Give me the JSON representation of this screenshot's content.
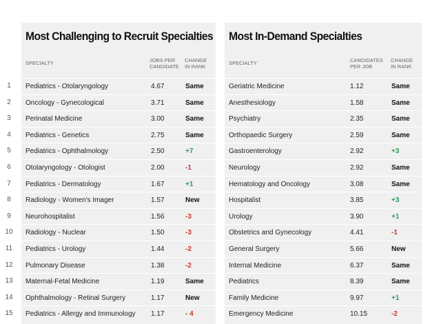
{
  "left": {
    "title": "Most Challenging to Recruit Specialties",
    "headers": {
      "specialty": "SPECIALTY",
      "metric": "JOBS PER\nCANDIDATE",
      "change": "CHANGE\nIN RANK"
    },
    "rows": [
      {
        "n": "1",
        "name": "Pediatrics - Otolaryngology",
        "v": "4.67",
        "c": "Same",
        "t": "same"
      },
      {
        "n": "2",
        "name": "Oncology - Gynecological",
        "v": "3.71",
        "c": "Same",
        "t": "same"
      },
      {
        "n": "3",
        "name": "Perinatal Medicine",
        "v": "3.00",
        "c": "Same",
        "t": "same"
      },
      {
        "n": "4",
        "name": "Pediatrics - Genetics",
        "v": "2.75",
        "c": "Same",
        "t": "same"
      },
      {
        "n": "5",
        "name": "Pediatrics - Ophthalmology",
        "v": "2.50",
        "c": "+7",
        "t": "up"
      },
      {
        "n": "6",
        "name": "Otolaryngology - Otologist",
        "v": "2.00",
        "c": "-1",
        "t": "down"
      },
      {
        "n": "7",
        "name": "Pediatrics - Dermatology",
        "v": "1.67",
        "c": "+1",
        "t": "up"
      },
      {
        "n": "8",
        "name": "Radiology - Women's Imager",
        "v": "1.57",
        "c": "New",
        "t": "new"
      },
      {
        "n": "9",
        "name": "Neurohospitalist",
        "v": "1.56",
        "c": "-3",
        "t": "down"
      },
      {
        "n": "10",
        "name": "Radiology - Nuclear",
        "v": "1.50",
        "c": "-3",
        "t": "down"
      },
      {
        "n": "11",
        "name": "Pediatrics - Urology",
        "v": "1.44",
        "c": "-2",
        "t": "down"
      },
      {
        "n": "12",
        "name": "Pulmonary Disease",
        "v": "1.38",
        "c": "-2",
        "t": "down"
      },
      {
        "n": "13",
        "name": "Maternal-Fetal Medicine",
        "v": "1.19",
        "c": "Same",
        "t": "same"
      },
      {
        "n": "14",
        "name": "Ophthalmology - Retinal Surgery",
        "v": "1.17",
        "c": "New",
        "t": "new"
      },
      {
        "n": "15",
        "name": "Pediatrics - Allergy and Immunology",
        "v": "1.17",
        "c": "- 4",
        "t": "down"
      }
    ]
  },
  "right": {
    "title": "Most In-Demand Specialties",
    "headers": {
      "specialty": "SPECIALTY",
      "metric": "CANDIDATES\nPER JOB",
      "change": "CHANGE\nIN RANK"
    },
    "rows": [
      {
        "name": "Geriatric Medicine",
        "v": "1.12",
        "c": "Same",
        "t": "same"
      },
      {
        "name": "Anesthesiology",
        "v": "1.58",
        "c": "Same",
        "t": "same"
      },
      {
        "name": "Psychiatry",
        "v": "2.35",
        "c": "Same",
        "t": "same"
      },
      {
        "name": "Orthopaedic Surgery",
        "v": "2.59",
        "c": "Same",
        "t": "same"
      },
      {
        "name": "Gastroenterology",
        "v": "2.92",
        "c": "+3",
        "t": "up"
      },
      {
        "name": "Neurology",
        "v": "2.92",
        "c": "Same",
        "t": "same"
      },
      {
        "name": "Hematology and Oncology",
        "v": "3.08",
        "c": "Same",
        "t": "same"
      },
      {
        "name": "Hospitalist",
        "v": "3.85",
        "c": "+3",
        "t": "up"
      },
      {
        "name": "Urology",
        "v": "3.90",
        "c": "+1",
        "t": "up"
      },
      {
        "name": "Obstetrics and Gynecology",
        "v": "4.41",
        "c": "-1",
        "t": "down"
      },
      {
        "name": "General Surgery",
        "v": "5.66",
        "c": "New",
        "t": "new"
      },
      {
        "name": "Internal Medicine",
        "v": "6.37",
        "c": "Same",
        "t": "same"
      },
      {
        "name": "Pediatrics",
        "v": "8.39",
        "c": "Same",
        "t": "same"
      },
      {
        "name": "Family Medicine",
        "v": "9.97",
        "c": "+1",
        "t": "up"
      },
      {
        "name": "Emergency Medicine",
        "v": "10.15",
        "c": "-2",
        "t": "down"
      }
    ]
  }
}
